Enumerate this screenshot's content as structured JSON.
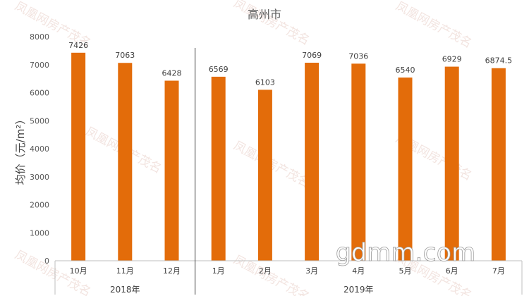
{
  "chart_data": {
    "type": "bar",
    "title": "高州市",
    "ylabel": "均价（元/m²）",
    "xlabel": "",
    "ylim": [
      0,
      8000
    ],
    "yticks": [
      0,
      1000,
      2000,
      3000,
      4000,
      5000,
      6000,
      7000,
      8000
    ],
    "grid": false,
    "bar_color": "#e36c0a",
    "categories": [
      "10月",
      "11月",
      "12月",
      "1月",
      "2月",
      "3月",
      "4月",
      "5月",
      "6月",
      "7月"
    ],
    "values": [
      7426,
      7063,
      6428,
      6569,
      6103,
      7069,
      7036,
      6540,
      6929,
      6874.5
    ],
    "data_labels": [
      "7426",
      "7063",
      "6428",
      "6569",
      "6103",
      "7069",
      "7036",
      "6540",
      "6929",
      "6874.5"
    ],
    "groups": [
      {
        "label": "2018年",
        "count": 3
      },
      {
        "label": "2019年",
        "count": 7
      }
    ]
  },
  "watermark": {
    "text": "凤凰网房产茂名",
    "logo_text": "gdmm.com"
  }
}
